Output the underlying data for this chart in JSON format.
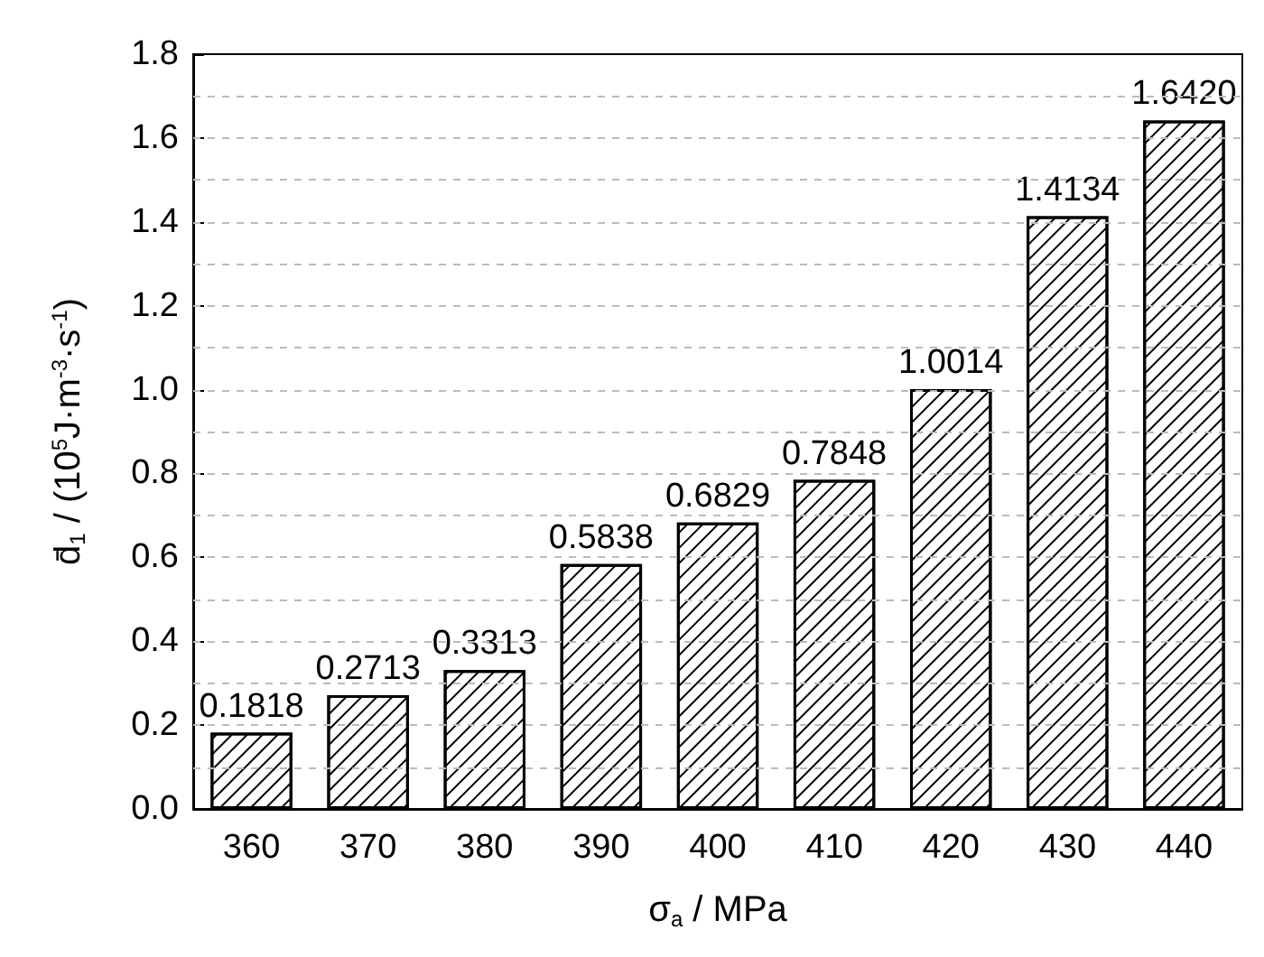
{
  "chart_data": {
    "type": "bar",
    "xlabel": "σ$_{a}$ / MPa",
    "ylabel": "d̄$_{1}$ / (10$^{5}$J·m$^{-3}$·s$^{-1}$)",
    "categories": [
      "360",
      "370",
      "380",
      "390",
      "400",
      "410",
      "420",
      "430",
      "440"
    ],
    "values": [
      0.1818,
      0.2713,
      0.3313,
      0.5838,
      0.6829,
      0.7848,
      1.0014,
      1.4134,
      1.642
    ],
    "value_labels": [
      "0.1818",
      "0.2713",
      "0.3313",
      "0.5838",
      "0.6829",
      "0.7848",
      "1.0014",
      "1.4134",
      "1.6420"
    ],
    "color": "#000000",
    "ylim": [
      0,
      1.8
    ],
    "yticks": [
      {
        "value": 0,
        "label": "0.0"
      },
      {
        "value": 0.1,
        "label": null
      },
      {
        "value": 0.2,
        "label": "0.2"
      },
      {
        "value": 0.3,
        "label": null
      },
      {
        "value": 0.4,
        "label": "0.4"
      },
      {
        "value": 0.5,
        "label": null
      },
      {
        "value": 0.6,
        "label": "0.6"
      },
      {
        "value": 0.7,
        "label": null
      },
      {
        "value": 0.8,
        "label": "0.8"
      },
      {
        "value": 0.9,
        "label": null
      },
      {
        "value": 1.0,
        "label": "1.0"
      },
      {
        "value": 1.1,
        "label": null
      },
      {
        "value": 1.2,
        "label": "1.2"
      },
      {
        "value": 1.3,
        "label": null
      },
      {
        "value": 1.4,
        "label": "1.4"
      },
      {
        "value": 1.5,
        "label": null
      },
      {
        "value": 1.6,
        "label": "1.6"
      },
      {
        "value": 1.7,
        "label": null
      },
      {
        "value": 1.8,
        "label": "1.8"
      }
    ],
    "grid": "y"
  }
}
